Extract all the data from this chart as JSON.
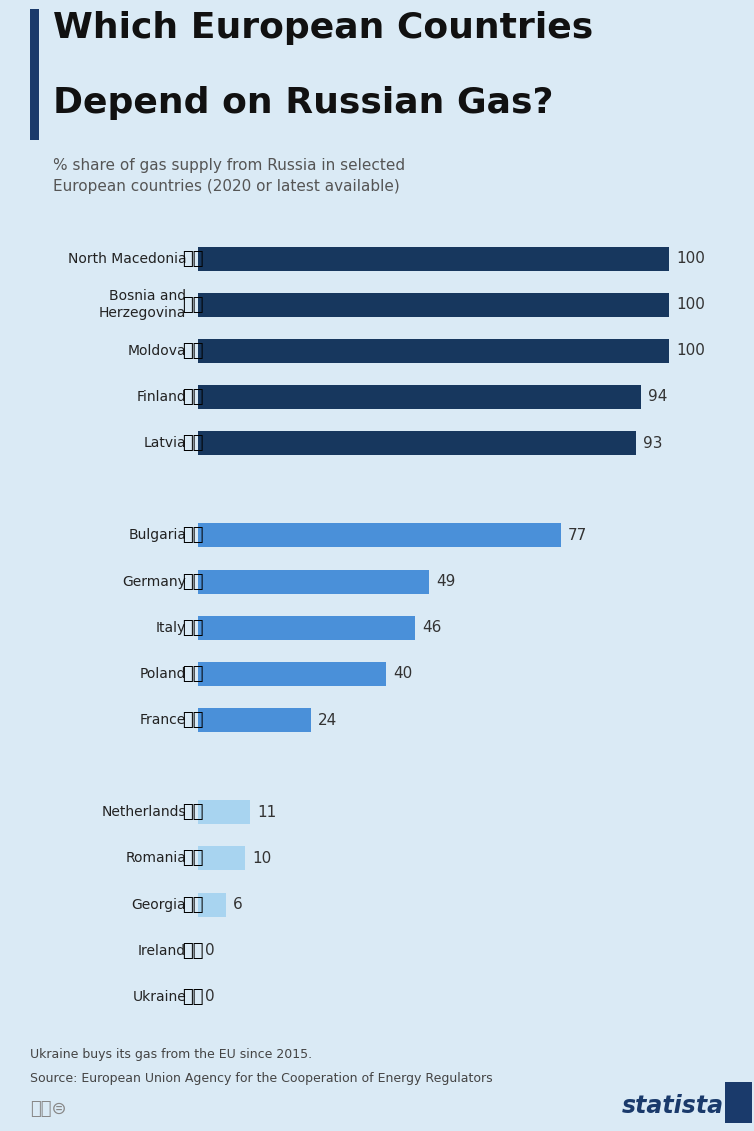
{
  "title_line1": "Which European Countries",
  "title_line2": "Depend on Russian Gas?",
  "subtitle": "% share of gas supply from Russia in selected\nEuropean countries (2020 or latest available)",
  "countries": [
    "North Macedonia",
    "Bosnia and\nHerzegovina",
    "Moldova",
    "Finland",
    "Latvia",
    "",
    "Bulgaria",
    "Germany",
    "Italy",
    "Poland",
    "France",
    "",
    "Netherlands",
    "Romania",
    "Georgia",
    "Ireland",
    "Ukraine"
  ],
  "values": [
    100,
    100,
    100,
    94,
    93,
    -1,
    77,
    49,
    46,
    40,
    24,
    -1,
    11,
    10,
    6,
    0,
    0
  ],
  "bar_colors": [
    "#17375e",
    "#17375e",
    "#17375e",
    "#17375e",
    "#17375e",
    "none",
    "#4a90d9",
    "#4a90d9",
    "#4a90d9",
    "#4a90d9",
    "#4a90d9",
    "none",
    "#a8d4f0",
    "#a8d4f0",
    "#a8d4f0",
    "#a8d4f0",
    "#a8d4f0"
  ],
  "flag_emojis": [
    "🇲🇰",
    "🇧🇦",
    "🇲🇩",
    "🇫🇮",
    "🇱🇻",
    "",
    "🇧🇬",
    "🇩🇪",
    "🇮🇹",
    "🇵🇱",
    "🇫🇷",
    "",
    "🇳🇱",
    "🇷🇴",
    "🇬🇪",
    "🇮🇪",
    "🇺🇦"
  ],
  "background_color": "#daeaf5",
  "title_color": "#111111",
  "subtitle_color": "#555555",
  "label_color": "#222222",
  "value_color": "#333333",
  "note_line1": "Ukraine buys its gas from the EU since 2015.",
  "note_line2": "Source: European Union Agency for the Cooperation of Energy Regulators",
  "title_bar_color": "#1a3a6b"
}
